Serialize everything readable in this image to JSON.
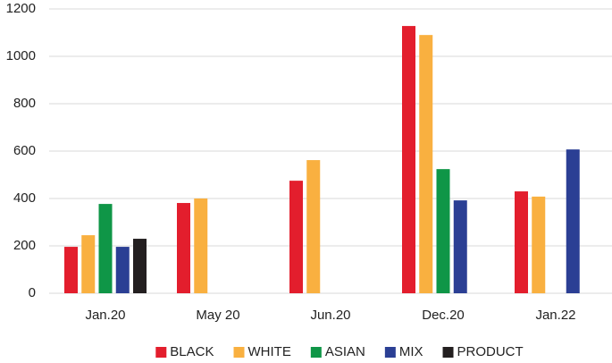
{
  "chart_data": {
    "type": "bar",
    "categories": [
      "Jan.20",
      "May 20",
      "Jun.20",
      "Dec.20",
      "Jan.22"
    ],
    "series": [
      {
        "name": "BLACK",
        "color": "#e31e2d",
        "values": [
          196,
          381,
          475,
          1128,
          430
        ]
      },
      {
        "name": "WHITE",
        "color": "#f9b040",
        "values": [
          245,
          400,
          562,
          1090,
          408
        ]
      },
      {
        "name": "ASIAN",
        "color": "#0f9647",
        "values": [
          377,
          null,
          null,
          524,
          null
        ]
      },
      {
        "name": "MIX",
        "color": "#2b3f94",
        "values": [
          196,
          null,
          null,
          392,
          607
        ]
      },
      {
        "name": "PRODUCT",
        "color": "#231f20",
        "values": [
          230,
          null,
          null,
          null,
          null
        ]
      }
    ],
    "ylim": [
      0,
      1200
    ],
    "yticks": [
      0,
      200,
      400,
      600,
      800,
      1000,
      1200
    ],
    "grid": true,
    "legend": "bottom"
  }
}
